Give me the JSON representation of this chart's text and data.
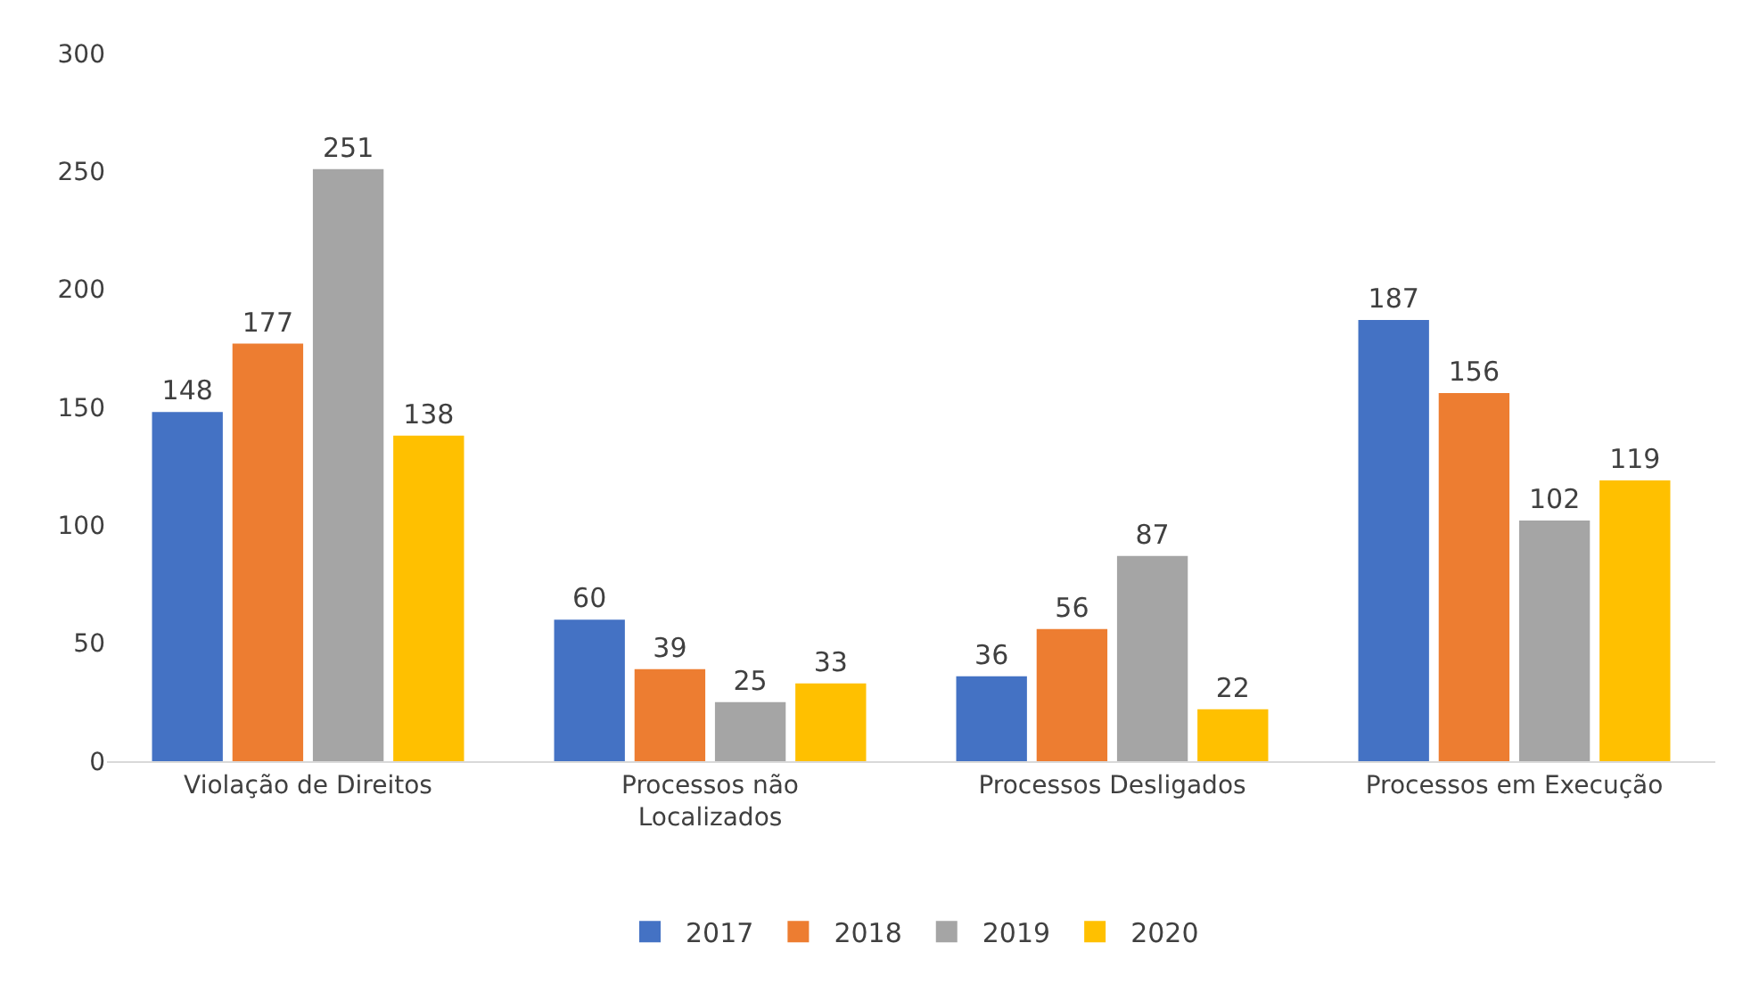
{
  "chart_data": {
    "type": "bar",
    "categories": [
      "Violação de Direitos",
      "Processos não Localizados",
      "Processos Desligados",
      "Processos em Execução"
    ],
    "series": [
      {
        "name": "2017",
        "color": "#4472c4",
        "values": [
          148,
          60,
          36,
          187
        ]
      },
      {
        "name": "2018",
        "color": "#ed7d31",
        "values": [
          177,
          39,
          56,
          156
        ]
      },
      {
        "name": "2019",
        "color": "#a5a5a5",
        "values": [
          251,
          25,
          87,
          102
        ]
      },
      {
        "name": "2020",
        "color": "#ffc000",
        "values": [
          138,
          33,
          22,
          119
        ]
      }
    ],
    "ylim": [
      0,
      300
    ],
    "yticks": [
      0,
      50,
      100,
      150,
      200,
      250,
      300
    ],
    "grid": false,
    "legend": "bottom",
    "data_labels": true
  }
}
